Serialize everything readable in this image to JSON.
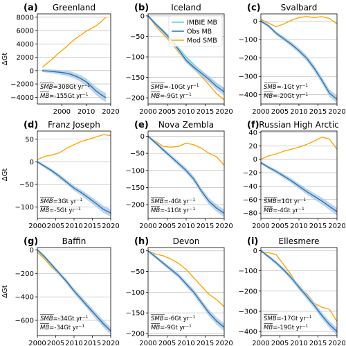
{
  "colors": {
    "imbie": "#40e0d0",
    "obs": "#1f77b4",
    "obs_band": "#aec7e8",
    "mod": "#ffa500",
    "grid": "#b0b0b0"
  },
  "legend": {
    "items": [
      "IMBIE MB",
      "Obs MB",
      "Mod SMB"
    ],
    "panel": 1
  },
  "shared_ylabel": "ΔGt",
  "chart_data": [
    {
      "type": "line",
      "letter": "(a)",
      "title": "Greenland",
      "xlim": [
        1990,
        2020
      ],
      "xticks": [
        2000,
        2010,
        2020
      ],
      "ylim": [
        -5000,
        8500
      ],
      "yticks": [
        -4000,
        -2000,
        0,
        2000,
        4000,
        6000,
        8000
      ],
      "ylabel": "ΔGt",
      "grid": true,
      "series": [
        {
          "name": "IMBIE MB",
          "x": [
            1992,
            1994,
            1996,
            1998,
            2000,
            2002,
            2004,
            2006,
            2008,
            2010,
            2012,
            2014,
            2016,
            2018
          ],
          "y": [
            0,
            -40,
            -100,
            -170,
            -260,
            -370,
            -560,
            -830,
            -1200,
            -1650,
            -2300,
            -3000,
            -3550,
            -4000
          ]
        },
        {
          "name": "Obs MB",
          "x": [
            1992,
            1994,
            1996,
            1998,
            2000,
            2002,
            2004,
            2006,
            2008,
            2010,
            2012,
            2014,
            2016,
            2018
          ],
          "y": [
            0,
            -50,
            -120,
            -200,
            -290,
            -400,
            -600,
            -880,
            -1250,
            -1700,
            -2350,
            -3050,
            -3600,
            -4050
          ]
        },
        {
          "name": "Mod SMB",
          "x": [
            1992,
            1994,
            1996,
            1998,
            2000,
            2002,
            2004,
            2006,
            2008,
            2010,
            2012,
            2014,
            2016,
            2018
          ],
          "y": [
            500,
            1100,
            1700,
            2400,
            3000,
            3600,
            4300,
            4900,
            5400,
            5900,
            6300,
            6700,
            7300,
            8000
          ]
        }
      ],
      "annotations": {
        "smb": "=308Gt yr",
        "mb": "=-155Gt yr"
      }
    },
    {
      "type": "line",
      "letter": "(b)",
      "title": "Iceland",
      "xlim": [
        2000,
        2020
      ],
      "xticks": [
        2000,
        2005,
        2010,
        2015,
        2020
      ],
      "ylim": [
        -215,
        5
      ],
      "yticks": [
        -200,
        -150,
        -100,
        -50,
        0
      ],
      "grid": true,
      "series": [
        {
          "name": "IMBIE MB",
          "x": [
            2000,
            2002,
            2004,
            2006,
            2008,
            2010,
            2012,
            2014,
            2016,
            2018,
            2020
          ],
          "y": [
            0,
            -18,
            -35,
            -55,
            -78,
            -100,
            -118,
            -135,
            -150,
            -165,
            -178
          ]
        },
        {
          "name": "Obs MB",
          "x": [
            2000,
            2002,
            2004,
            2006,
            2008,
            2010,
            2012,
            2014,
            2016,
            2018,
            2020
          ],
          "y": [
            0,
            -20,
            -38,
            -58,
            -82,
            -108,
            -125,
            -140,
            -155,
            -172,
            -185
          ]
        },
        {
          "name": "Mod SMB",
          "x": [
            2000,
            2002,
            2004,
            2006,
            2008,
            2010,
            2012,
            2014,
            2016,
            2018,
            2020
          ],
          "y": [
            0,
            -25,
            -45,
            -65,
            -88,
            -112,
            -128,
            -148,
            -168,
            -190,
            -205
          ]
        }
      ],
      "annotations": {
        "smb": "=-10Gt yr",
        "mb": "=-9Gt yr"
      }
    },
    {
      "type": "line",
      "letter": "(c)",
      "title": "Svalbard",
      "xlim": [
        2000,
        2020
      ],
      "xticks": [
        2000,
        2005,
        2010,
        2015,
        2020
      ],
      "ylim": [
        -450,
        40
      ],
      "yticks": [
        -400,
        -300,
        -200,
        -100,
        0
      ],
      "grid": true,
      "series": [
        {
          "name": "Obs MB",
          "x": [
            2000,
            2002,
            2004,
            2006,
            2008,
            2010,
            2012,
            2014,
            2016,
            2018,
            2020
          ],
          "y": [
            0,
            -25,
            -65,
            -95,
            -125,
            -160,
            -200,
            -255,
            -320,
            -390,
            -425
          ]
        },
        {
          "name": "Mod SMB",
          "x": [
            2000,
            2002,
            2004,
            2006,
            2008,
            2010,
            2012,
            2014,
            2016,
            2018,
            2020
          ],
          "y": [
            10,
            -10,
            -30,
            -15,
            5,
            20,
            25,
            20,
            25,
            15,
            -15
          ]
        }
      ],
      "annotations": {
        "smb": "=-1Gt yr",
        "mb": "=-20Gt yr"
      }
    },
    {
      "type": "line",
      "letter": "(d)",
      "title": "Franz Joseph",
      "xlim": [
        2000,
        2020
      ],
      "xticks": [
        2000,
        2005,
        2010,
        2015,
        2020
      ],
      "ylim": [
        -125,
        68
      ],
      "yticks": [
        -100,
        -50,
        0,
        50
      ],
      "ylabel": "ΔGt",
      "grid": true,
      "series": [
        {
          "name": "Obs MB",
          "x": [
            2000,
            2002,
            2004,
            2006,
            2008,
            2010,
            2012,
            2014,
            2016,
            2018,
            2020
          ],
          "y": [
            0,
            -10,
            -20,
            -32,
            -45,
            -58,
            -68,
            -80,
            -92,
            -105,
            -113
          ]
        },
        {
          "name": "Mod SMB",
          "x": [
            2000,
            2002,
            2004,
            2006,
            2008,
            2010,
            2012,
            2014,
            2016,
            2018,
            2020
          ],
          "y": [
            5,
            12,
            15,
            20,
            30,
            38,
            45,
            50,
            55,
            60,
            58
          ]
        }
      ],
      "annotations": {
        "smb": "=3Gt yr",
        "mb": "=-5Gt yr"
      }
    },
    {
      "type": "line",
      "letter": "(e)",
      "title": "Nova Zembla",
      "xlim": [
        2000,
        2020
      ],
      "xticks": [
        2000,
        2005,
        2010,
        2015,
        2020
      ],
      "ylim": [
        -240,
        15
      ],
      "yticks": [
        -200,
        -150,
        -100,
        -50,
        0
      ],
      "grid": true,
      "series": [
        {
          "name": "Obs MB",
          "x": [
            2000,
            2002,
            2004,
            2006,
            2008,
            2010,
            2012,
            2014,
            2016,
            2018,
            2020
          ],
          "y": [
            0,
            -20,
            -40,
            -60,
            -80,
            -100,
            -125,
            -160,
            -190,
            -210,
            -225
          ]
        },
        {
          "name": "Mod SMB",
          "x": [
            2000,
            2002,
            2004,
            2006,
            2008,
            2010,
            2012,
            2014,
            2016,
            2018,
            2020
          ],
          "y": [
            0,
            -15,
            -30,
            -32,
            -30,
            -20,
            -25,
            -35,
            -50,
            -60,
            -85
          ]
        }
      ],
      "annotations": {
        "smb": "=-4Gt yr",
        "mb": "=-11Gt yr"
      }
    },
    {
      "type": "line",
      "letter": "(f)",
      "title": "Russian High Arctic",
      "xlim": [
        2000,
        2020
      ],
      "xticks": [
        2000,
        2005,
        2010,
        2015,
        2020
      ],
      "ylim": [
        -88,
        42
      ],
      "yticks": [
        -80,
        -60,
        -40,
        -20,
        0,
        20,
        40
      ],
      "grid": true,
      "series": [
        {
          "name": "Obs MB",
          "x": [
            2000,
            2002,
            2004,
            2006,
            2008,
            2010,
            2012,
            2014,
            2016,
            2018,
            2020
          ],
          "y": [
            -5,
            -12,
            -18,
            -25,
            -32,
            -40,
            -48,
            -55,
            -62,
            -70,
            -78
          ]
        },
        {
          "name": "Mod SMB",
          "x": [
            2000,
            2002,
            2004,
            2006,
            2008,
            2010,
            2012,
            2014,
            2016,
            2018,
            2020
          ],
          "y": [
            0,
            5,
            8,
            12,
            15,
            18,
            22,
            27,
            33,
            30,
            15
          ]
        }
      ],
      "annotations": {
        "smb": "=1Gt yr",
        "mb": "=-4Gt yr"
      }
    },
    {
      "type": "line",
      "letter": "(g)",
      "title": "Baffin",
      "xlim": [
        2000,
        2020
      ],
      "xticks": [
        2000,
        2005,
        2010,
        2015,
        2020
      ],
      "ylim": [
        -730,
        20
      ],
      "yticks": [
        -600,
        -400,
        -200,
        0
      ],
      "ylabel": "ΔGt",
      "grid": true,
      "series": [
        {
          "name": "Obs MB",
          "x": [
            2000,
            2002,
            2004,
            2006,
            2008,
            2010,
            2012,
            2014,
            2016,
            2018,
            2020
          ],
          "y": [
            0,
            -60,
            -130,
            -200,
            -270,
            -350,
            -420,
            -490,
            -560,
            -630,
            -690
          ]
        },
        {
          "name": "Mod SMB",
          "x": [
            2000,
            2002,
            2004,
            2006,
            2008,
            2010,
            2012,
            2014,
            2016,
            2018,
            2020
          ],
          "y": [
            -20,
            -80,
            -150,
            -210,
            -280,
            -350,
            -420,
            -500,
            -560,
            -620,
            -700
          ]
        }
      ],
      "annotations": {
        "smb": "=-34Gt yr",
        "mb": "=-34Gt yr"
      }
    },
    {
      "type": "line",
      "letter": "(h)",
      "title": "Devon",
      "xlim": [
        2000,
        2020
      ],
      "xticks": [
        2000,
        2005,
        2010,
        2015,
        2020
      ],
      "ylim": [
        -205,
        8
      ],
      "yticks": [
        -200,
        -150,
        -100,
        -50,
        0
      ],
      "grid": true,
      "series": [
        {
          "name": "Obs MB",
          "x": [
            2000,
            2002,
            2004,
            2006,
            2008,
            2010,
            2012,
            2014,
            2016,
            2018,
            2020
          ],
          "y": [
            0,
            -15,
            -30,
            -45,
            -60,
            -80,
            -100,
            -125,
            -150,
            -170,
            -185
          ]
        },
        {
          "name": "Mod SMB",
          "x": [
            2000,
            2002,
            2004,
            2006,
            2008,
            2010,
            2012,
            2014,
            2016,
            2018,
            2020
          ],
          "y": [
            0,
            -8,
            -12,
            -20,
            -30,
            -45,
            -65,
            -85,
            -105,
            -118,
            -135
          ]
        }
      ],
      "annotations": {
        "smb": "=-6Gt yr",
        "mb": "=-9Gt yr"
      }
    },
    {
      "type": "line",
      "letter": "(i)",
      "title": "Ellesmere",
      "xlim": [
        2000,
        2020
      ],
      "xticks": [
        2000,
        2005,
        2010,
        2015,
        2020
      ],
      "ylim": [
        -420,
        15
      ],
      "yticks": [
        -400,
        -300,
        -200,
        -100,
        0
      ],
      "grid": true,
      "series": [
        {
          "name": "Obs MB",
          "x": [
            2000,
            2002,
            2004,
            2006,
            2008,
            2010,
            2012,
            2014,
            2016,
            2018,
            2020
          ],
          "y": [
            0,
            -30,
            -60,
            -95,
            -135,
            -180,
            -225,
            -270,
            -320,
            -365,
            -400
          ]
        },
        {
          "name": "Mod SMB",
          "x": [
            2000,
            2002,
            2004,
            2006,
            2008,
            2010,
            2012,
            2014,
            2016,
            2018,
            2020
          ],
          "y": [
            -10,
            -10,
            -20,
            -70,
            -120,
            -190,
            -210,
            -260,
            -280,
            -290,
            -350
          ]
        }
      ],
      "annotations": {
        "smb": "=-17Gt yr",
        "mb": "=-19Gt yr"
      }
    }
  ]
}
